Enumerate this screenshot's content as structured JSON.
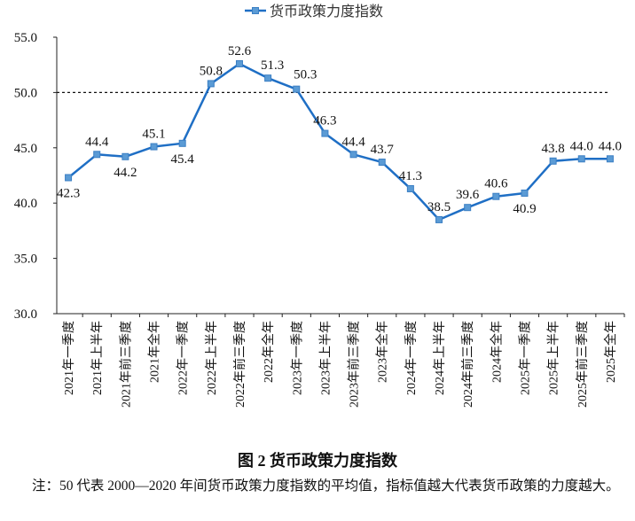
{
  "chart_data": {
    "type": "line",
    "title": "",
    "legend": {
      "position": "top",
      "entries": [
        "货币政策力度指数"
      ]
    },
    "xlabel": "",
    "ylabel": "",
    "ylim": [
      30.0,
      55.0
    ],
    "yticks": [
      "30.0",
      "35.0",
      "40.0",
      "45.0",
      "50.0",
      "55.0"
    ],
    "grid": false,
    "reference_line": {
      "y": 50.0,
      "style": "dashed"
    },
    "categories": [
      "2021年一季度",
      "2021年上半年",
      "2021年前三季度",
      "2021年全年",
      "2022年一季度",
      "2022年上半年",
      "2022年前三季度",
      "2022年全年",
      "2023年一季度",
      "2023年上半年",
      "2023年前三季度",
      "2023年全年",
      "2024年一季度",
      "2024年上半年",
      "2024年前三季度",
      "2024年全年",
      "2025年一季度",
      "2025年上半年",
      "2025年前三季度",
      "2025年全年"
    ],
    "series": [
      {
        "name": "货币政策力度指数",
        "color": "#1f6fc5",
        "marker": "square",
        "values": [
          42.3,
          44.4,
          44.2,
          45.1,
          45.4,
          50.8,
          52.6,
          51.3,
          50.3,
          46.3,
          44.4,
          43.7,
          41.3,
          38.5,
          39.6,
          40.6,
          40.9,
          43.8,
          44.0,
          44.0
        ],
        "labels": [
          "42.3",
          "44.4",
          "44.2",
          "45.1",
          "45.4",
          "50.8",
          "52.6",
          "51.3",
          "50.3",
          "46.3",
          "44.4",
          "43.7",
          "41.3",
          "38.5",
          "39.6",
          "40.6",
          "40.9",
          "43.8",
          "44.0",
          "44.0"
        ]
      }
    ]
  },
  "caption": "图 2  货币政策力度指数",
  "note": "注：50 代表 2000—2020 年间货币政策力度指数的平均值，指标值越大代表货币政策的力度越大。"
}
